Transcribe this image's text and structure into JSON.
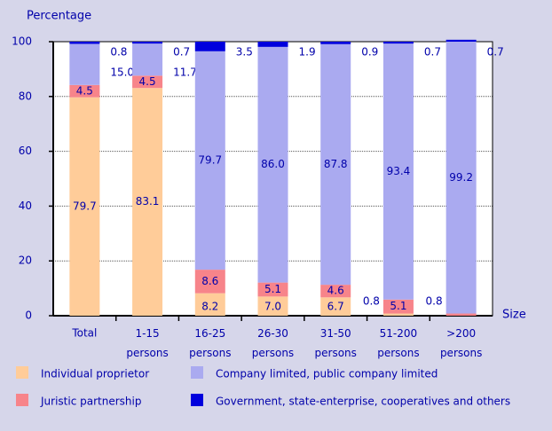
{
  "chart_data": {
    "type": "stacked_bar",
    "y_label": "Percentage",
    "x_label": "Size",
    "categories": [
      "Total",
      "1-15 persons",
      "16-25 persons",
      "26-30 persons",
      "31-50 persons",
      "51-200 persons",
      ">200 persons"
    ],
    "series": [
      {
        "name": "Individual proprietor",
        "color": "#ffcc99",
        "values": [
          79.7,
          83.1,
          8.2,
          7.0,
          6.7,
          0.8,
          0
        ],
        "value_labels": [
          "79.7",
          "83.1",
          "8.2",
          "7.0",
          "6.7",
          "0.8",
          null
        ]
      },
      {
        "name": "Juristic partnership",
        "color": "#f7848a",
        "values": [
          4.5,
          4.5,
          8.6,
          5.1,
          4.6,
          5.1,
          0.8
        ],
        "value_labels": [
          "4.5",
          "4.5",
          "8.6",
          "5.1",
          "4.6",
          "5.1",
          "0.8"
        ]
      },
      {
        "name": "Company limited, public company limited",
        "color": "#aaaaf0",
        "values": [
          15.0,
          11.7,
          79.7,
          86.0,
          87.8,
          93.4,
          99.2
        ],
        "value_labels": [
          "15.0",
          "11.7",
          "79.7",
          "86.0",
          "87.8",
          "93.4",
          "99.2"
        ]
      },
      {
        "name": "Government, state-enterprise, cooperatives and others",
        "color": "#0000dd",
        "values": [
          0.8,
          0.7,
          3.5,
          1.9,
          0.9,
          0.7,
          0.7
        ],
        "value_labels": [
          "0.8",
          "0.7",
          "3.5",
          "1.9",
          "0.9",
          "0.7",
          "0.7"
        ]
      }
    ],
    "ylim": [
      0,
      100
    ],
    "yticks": [
      0,
      20,
      40,
      60,
      80,
      100
    ],
    "grid": true
  }
}
